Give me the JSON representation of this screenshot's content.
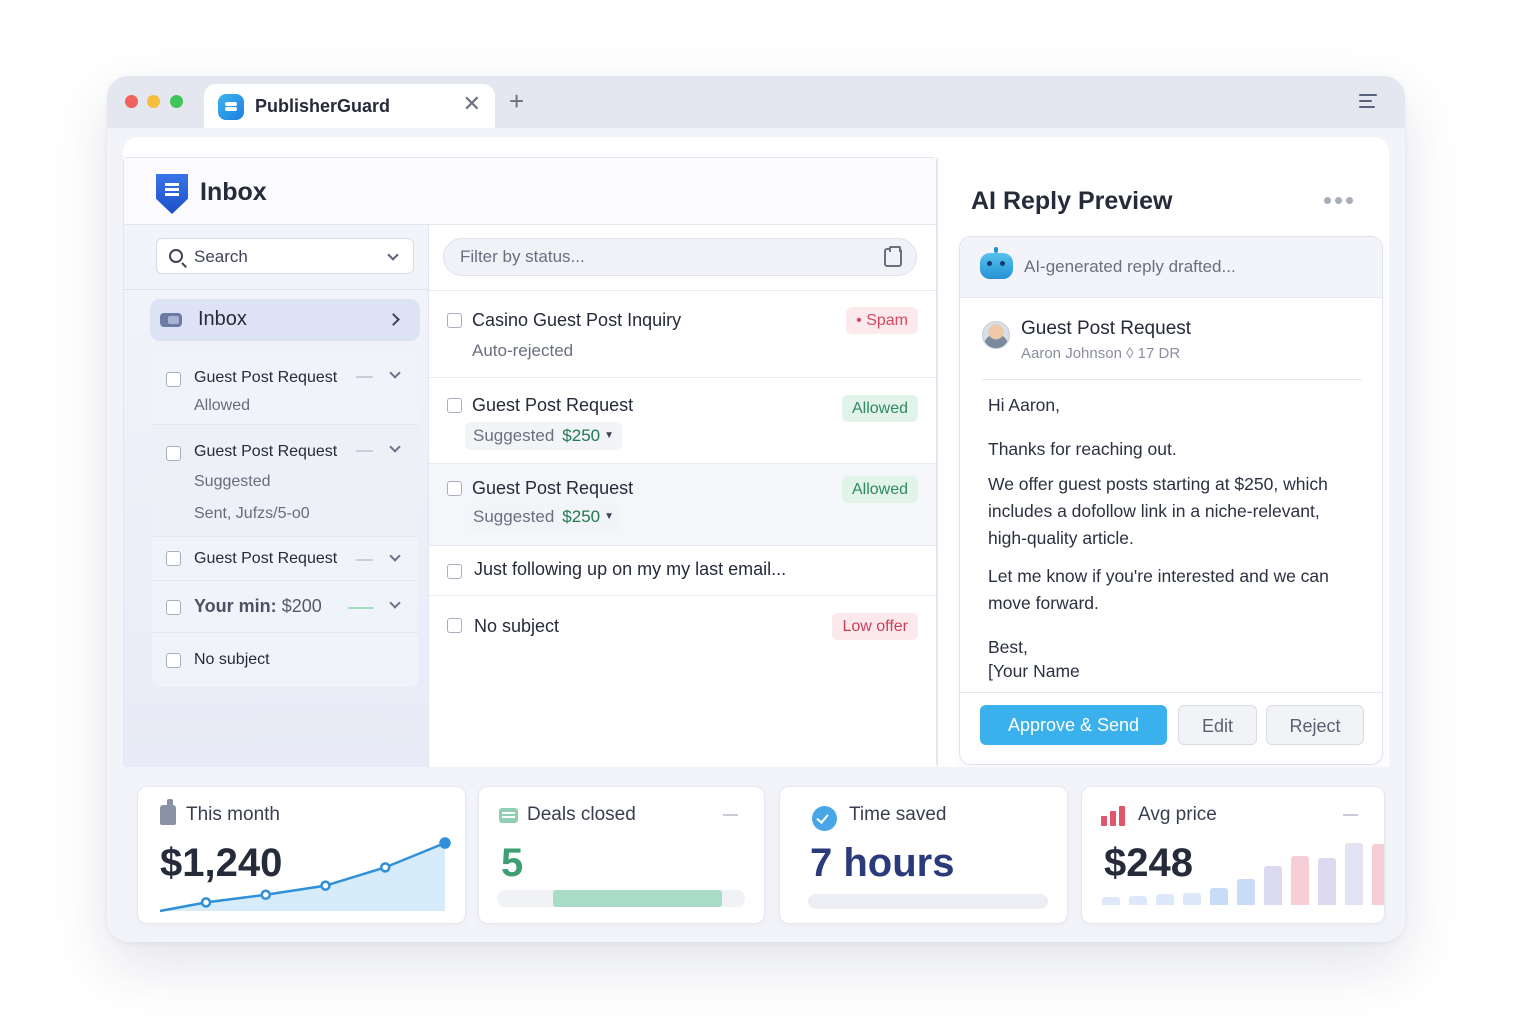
{
  "browser": {
    "tab_title": "PublisherGuard",
    "tab_close_glyph": "✕",
    "new_tab_glyph": "+",
    "icons": [
      "tab-logo-icon",
      "close-icon",
      "plus-icon",
      "hamburger-menu-icon"
    ]
  },
  "inbox": {
    "title": "Inbox",
    "search_placeholder": "Search",
    "nav_label": "Inbox",
    "sidebar_items": [
      {
        "title": "Guest Post Request",
        "sub": "Allowed"
      },
      {
        "title": "Guest Post Request",
        "sub": "Suggested",
        "sub2": "Sent, Jufzs/5-o0"
      },
      {
        "title": "Guest Post Request"
      },
      {
        "min_label": "Your min:",
        "min_value": "$200"
      },
      {
        "title": "No subject"
      }
    ]
  },
  "messages": {
    "filter_placeholder": "Filter by status...",
    "items": [
      {
        "title": "Casino Guest Post Inquiry",
        "sub": "Auto-rejected",
        "badge": "Spam"
      },
      {
        "title": "Guest Post Request",
        "pill_label": "Suggested",
        "pill_price": "$250",
        "badge": "Allowed"
      },
      {
        "title": "Guest Post Request",
        "pill_label": "Suggested",
        "pill_price": "$250",
        "badge": "Allowed"
      },
      {
        "title": "Just following up on my my last email..."
      },
      {
        "title": "No subject",
        "badge": "Low offer"
      }
    ]
  },
  "reply": {
    "panel_title": "AI Reply Preview",
    "status": "AI-generated reply drafted...",
    "subject": "Guest Post Request",
    "from": "Aaron Johnson ◊ 17 DR",
    "greeting": "Hi Aaron,",
    "p1": "Thanks for reaching out.",
    "p2": "We offer guest posts starting at $250, which includes a dofollow link in a niche-relevant, high-quality article.",
    "p3": "Let me know if you're interested and we can move forward.",
    "signoff": "Best,",
    "signature": "[Your Name",
    "approve_label": "Approve & Send",
    "edit_label": "Edit",
    "reject_label": "Reject"
  },
  "stats": {
    "this_month": {
      "label": "This month",
      "value": "$1,240",
      "trend": [
        1,
        2,
        3.2,
        5.6,
        8.8
      ]
    },
    "deals": {
      "label": "Deals closed",
      "value": "5",
      "progress": 0.68
    },
    "time": {
      "label": "Time saved",
      "value": "7 hours"
    },
    "avg": {
      "label": "Avg price",
      "value": "$248",
      "bars": [
        1,
        1.2,
        1.4,
        1.6,
        2.2,
        3.5,
        5.2,
        6.5,
        6.2,
        8.2,
        8.1
      ]
    }
  },
  "colors": {
    "accent": "#3ab0ec",
    "allowed": "#2f8a5e",
    "spam": "#d44a61",
    "price_green": "#1f7a4d"
  }
}
